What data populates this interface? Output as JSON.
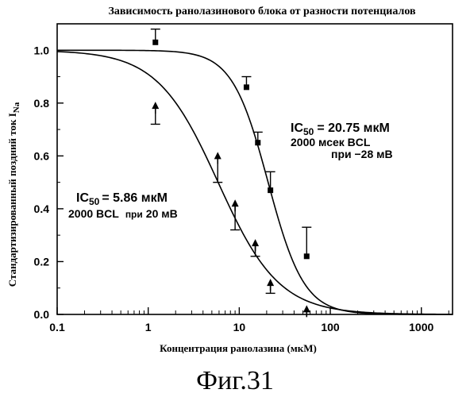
{
  "chart_data": {
    "type": "scatter",
    "title": "Зависимость ранолазинового блока от разности потенциалов",
    "xlabel": "Концентрация ранолазина (мкМ)",
    "ylabel": "Стандартизированный поздний ток I",
    "ylabel_sub": "Na",
    "x_scale": "log",
    "xlim": [
      0.1,
      2200
    ],
    "ylim": [
      0,
      1.1
    ],
    "x_ticks": [
      0.1,
      1,
      10,
      100,
      1000
    ],
    "x_tick_labels": [
      "0.1",
      "1",
      "10",
      "100",
      "1000"
    ],
    "y_ticks": [
      0,
      0.2,
      0.4,
      0.6,
      0.8,
      1.0
    ],
    "y_tick_labels": [
      "0.0",
      "0.2",
      "0.4",
      "0.6",
      "0.8",
      "1.0"
    ],
    "grid": false,
    "series": [
      {
        "marker": "square",
        "ic50": 20.75,
        "hill": 2.2,
        "points": [
          {
            "x": 1.2,
            "y": 1.03,
            "err_hi": 0.05,
            "err_lo": 0
          },
          {
            "x": 12,
            "y": 0.86,
            "err_hi": 0.04,
            "err_lo": 0
          },
          {
            "x": 16,
            "y": 0.65,
            "err_hi": 0.04,
            "err_lo": 0
          },
          {
            "x": 22,
            "y": 0.47,
            "err_hi": 0.07,
            "err_lo": 0
          },
          {
            "x": 55,
            "y": 0.22,
            "err_hi": 0.11,
            "err_lo": 0
          }
        ]
      },
      {
        "marker": "triangle",
        "ic50": 5.86,
        "hill": 1.3,
        "points": [
          {
            "x": 1.2,
            "y": 0.79,
            "err_hi": 0,
            "err_lo": 0.07
          },
          {
            "x": 5.8,
            "y": 0.6,
            "err_hi": 0,
            "err_lo": 0.1
          },
          {
            "x": 9,
            "y": 0.42,
            "err_hi": 0,
            "err_lo": 0.1
          },
          {
            "x": 15,
            "y": 0.27,
            "err_hi": 0,
            "err_lo": 0.05
          },
          {
            "x": 22,
            "y": 0.12,
            "err_hi": 0,
            "err_lo": 0.04
          },
          {
            "x": 55,
            "y": 0.02,
            "err_hi": 0,
            "err_lo": 0
          }
        ]
      }
    ],
    "annotations": [
      {
        "ic": "IC",
        "sub": "50",
        "value": "= 20.75 мкМ",
        "line2": "2000 мсек BCL",
        "line3": "при −28 мВ"
      },
      {
        "ic": "IC",
        "sub": "50",
        "value": "= 5.86 мкМ",
        "line2": "2000  BCL",
        "line2_small": "при",
        "line2_end": "20 мВ"
      }
    ]
  },
  "caption": "Фиг.31"
}
